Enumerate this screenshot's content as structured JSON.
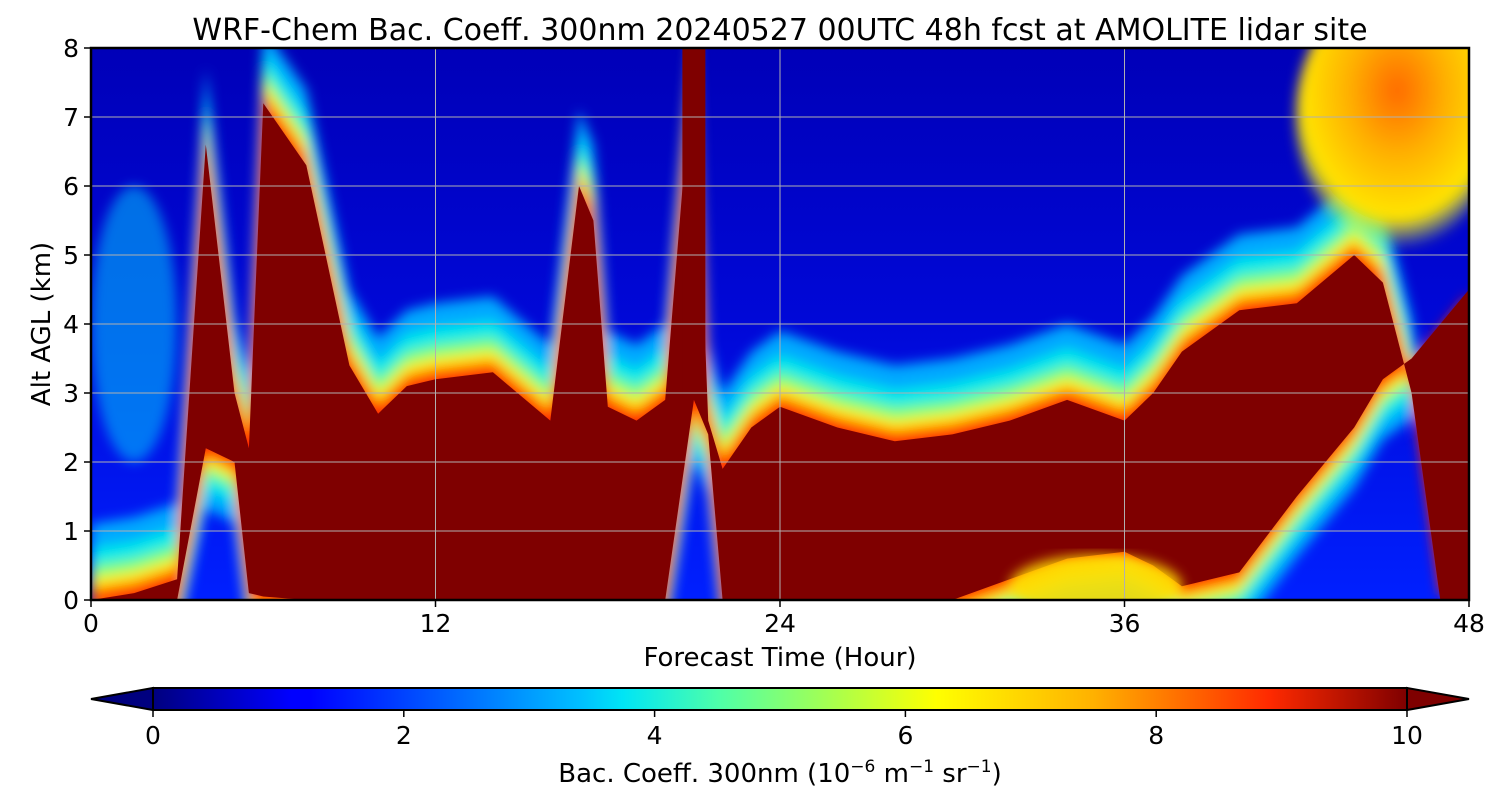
{
  "chart_data": {
    "type": "heatmap",
    "title": "WRF-Chem Bac. Coeff. 300nm  20240527 00UTC 48h fcst at AMOLITE lidar site",
    "xlabel": "Forecast Time (Hour)",
    "ylabel": "Alt AGL (km)",
    "xlim": [
      0,
      48
    ],
    "ylim": [
      0,
      8
    ],
    "x_ticks": [
      "0",
      "12",
      "24",
      "36",
      "48"
    ],
    "y_ticks": [
      "0",
      "1",
      "2",
      "3",
      "4",
      "5",
      "6",
      "7",
      "8"
    ],
    "grid": true,
    "colormap": "jet",
    "colorbar": {
      "label_main": "Bac. Coeff. 300nm  (10",
      "label_exp1": "−6",
      "label_mid": " m",
      "label_exp2": "−1",
      "label_mid2": " sr",
      "label_exp3": "−1",
      "label_end": ")",
      "range": [
        0,
        10
      ],
      "ticks": [
        "0",
        "2",
        "4",
        "6",
        "8",
        "10"
      ],
      "extend": "both",
      "orientation": "horizontal"
    },
    "x": [
      0,
      1.5,
      3,
      4,
      5,
      5.5,
      6,
      7.5,
      9,
      10,
      11,
      12,
      14,
      16,
      17,
      17.5,
      18,
      19,
      20,
      21,
      21.5,
      22,
      23,
      24,
      26,
      28,
      30,
      32,
      34,
      36,
      37,
      38,
      40,
      42,
      44,
      45,
      46,
      47,
      48
    ],
    "heavy_layer_top_km": [
      0,
      0.1,
      0.3,
      6.6,
      3.0,
      2.2,
      7.2,
      6.3,
      3.4,
      2.7,
      3.1,
      3.2,
      3.3,
      2.6,
      6.0,
      5.5,
      2.8,
      2.6,
      2.9,
      8.0,
      2.6,
      1.9,
      2.5,
      2.8,
      2.5,
      2.3,
      2.4,
      2.6,
      2.9,
      2.6,
      3.0,
      3.6,
      4.2,
      4.3,
      5.0,
      4.6,
      3.0,
      0.0,
      0.0
    ],
    "heavy_layer_base_km": [
      0,
      0,
      0,
      2.2,
      2.0,
      0.1,
      0.05,
      0,
      0,
      0,
      0,
      0,
      0,
      0,
      0,
      0,
      0,
      0,
      0,
      2.9,
      2.4,
      0,
      0,
      0,
      0,
      0,
      0,
      0.3,
      0.6,
      0.7,
      0.5,
      0.2,
      0.4,
      1.5,
      2.5,
      3.2,
      3.5,
      4.0,
      4.5
    ],
    "upper_aerosol_region": {
      "x_range": [
        42,
        48
      ],
      "y_range": [
        5.5,
        8
      ],
      "value_range": [
        6,
        8.5
      ]
    },
    "lower_left_background": {
      "x_range": [
        0,
        3
      ],
      "y_range": [
        0,
        8
      ],
      "value_range": [
        0.5,
        4
      ]
    }
  }
}
